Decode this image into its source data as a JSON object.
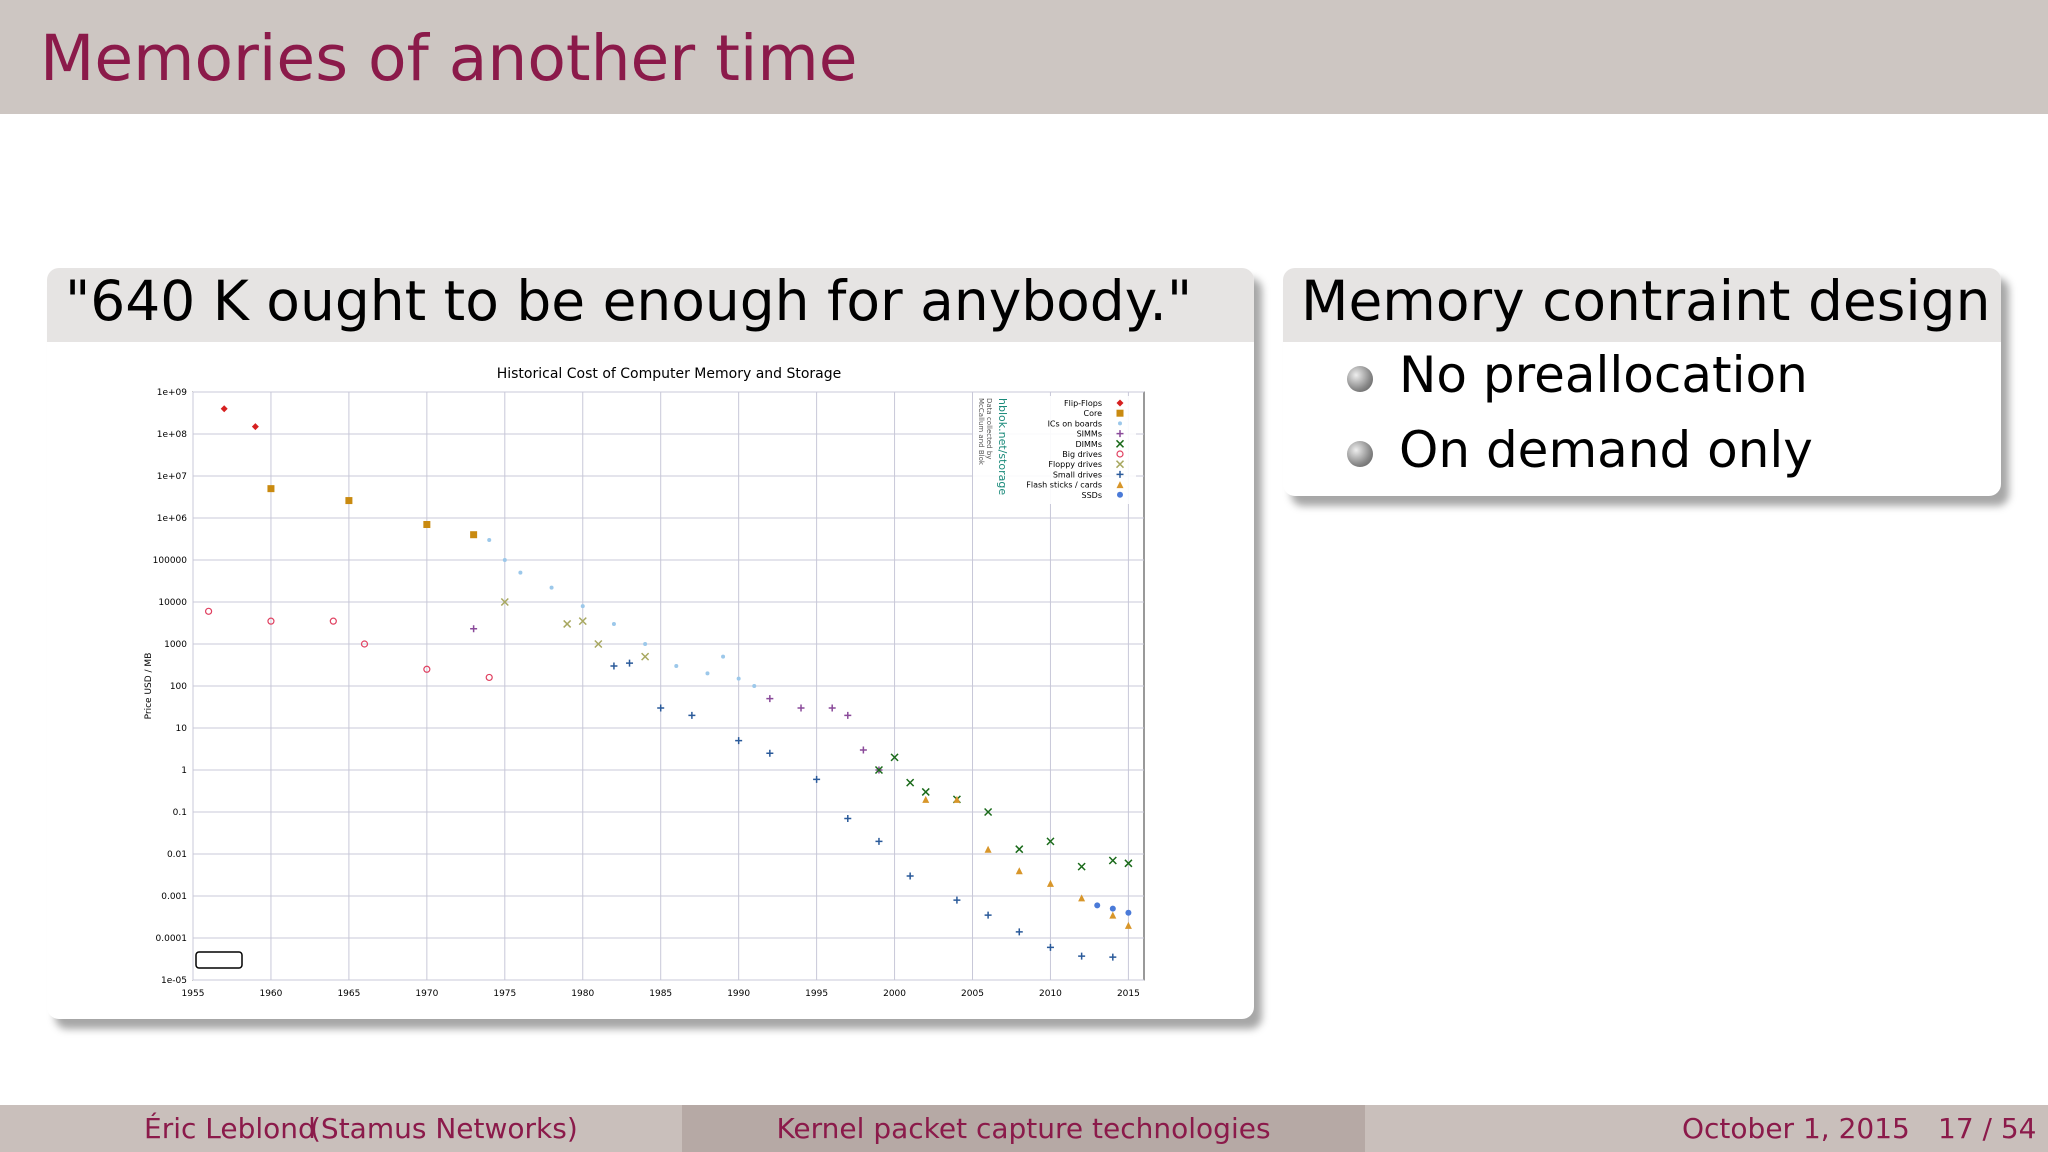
{
  "header": {
    "title": "Memories of another time"
  },
  "block_left": {
    "title": "\"640 K ought to be enough for anybody.\""
  },
  "block_right": {
    "title": "Memory contraint design",
    "items": [
      "No preallocation",
      "On demand only"
    ]
  },
  "footer": {
    "author": "Éric Leblond",
    "institute": "(Stamus Networks)",
    "talk": "Kernel packet capture technologies",
    "date": "October 1, 2015",
    "page": "17 / 54"
  },
  "chart_data": {
    "type": "scatter",
    "title": "Historical Cost of Computer Memory and Storage",
    "y_label": "Price USD / MB",
    "attribution": "hblok.net/storage",
    "credit": [
      "Data collected by",
      "McCallum and Blok"
    ],
    "log_y": true,
    "grid": true,
    "legend": "upper right",
    "xlim": [
      1955,
      2016
    ],
    "xticks": [
      1955,
      1960,
      1965,
      1970,
      1975,
      1980,
      1985,
      1990,
      1995,
      2000,
      2005,
      2010,
      2015
    ],
    "ylim": [
      1e-05,
      1000000000
    ],
    "yticks": [
      {
        "value": 1000000000,
        "label": "1e+09"
      },
      {
        "value": 100000000,
        "label": "1e+08"
      },
      {
        "value": 10000000,
        "label": "1e+07"
      },
      {
        "value": 1000000,
        "label": "1e+06"
      },
      100000,
      10000,
      1000,
      100,
      10,
      1,
      0.1,
      0.01,
      0.001,
      0.0001,
      {
        "value": 1e-05,
        "label": "1e-05"
      }
    ],
    "series": [
      {
        "name": "Flip-Flops",
        "color": "#d62020",
        "marker": "diamond",
        "x": [
          1957,
          1959
        ],
        "values": [
          400000000,
          150000000
        ]
      },
      {
        "name": "Core",
        "color": "#c98a10",
        "marker": "square",
        "x": [
          1960,
          1965,
          1970,
          1973
        ],
        "values": [
          5000000,
          2600000,
          700000,
          400000
        ]
      },
      {
        "name": "ICs on boards",
        "color": "#9cc8ea",
        "marker": "dot",
        "x": [
          1974,
          1975,
          1976,
          1978,
          1980,
          1982,
          1984,
          1986,
          1988,
          1989,
          1990,
          1991
        ],
        "values": [
          300000,
          100000,
          50000,
          22000,
          8000,
          3000,
          1000,
          300,
          200,
          500,
          150,
          100
        ]
      },
      {
        "name": "SIMMs",
        "color": "#8a4a9a",
        "marker": "plus",
        "x": [
          1973,
          1992,
          1994,
          1996,
          1997,
          1998,
          1999
        ],
        "values": [
          2300,
          50,
          30,
          30,
          20,
          3,
          1
        ]
      },
      {
        "name": "DIMMs",
        "color": "#1a6a1a",
        "marker": "x",
        "x": [
          1999,
          2000,
          2001,
          2002,
          2004,
          2006,
          2008,
          2010,
          2012,
          2014,
          2015
        ],
        "values": [
          1,
          2,
          0.5,
          0.3,
          0.2,
          0.1,
          0.013,
          0.02,
          0.005,
          0.007,
          0.006
        ]
      },
      {
        "name": "Big drives",
        "color": "#e04060",
        "marker": "circle-open",
        "x": [
          1956,
          1960,
          1964,
          1966,
          1970,
          1974
        ],
        "values": [
          6000,
          3500,
          3500,
          1000,
          250,
          160
        ]
      },
      {
        "name": "Floppy drives",
        "color": "#a8a860",
        "marker": "x",
        "x": [
          1975,
          1979,
          1980,
          1981,
          1984
        ],
        "values": [
          10000,
          3000,
          3500,
          1000,
          500
        ]
      },
      {
        "name": "Small drives",
        "color": "#2a5a9a",
        "marker": "plus",
        "x": [
          1982,
          1983,
          1985,
          1987,
          1990,
          1992,
          1995,
          1997,
          1999,
          2001,
          2004,
          2006,
          2008,
          2010,
          2012,
          2014
        ],
        "values": [
          300,
          350,
          30,
          20,
          5,
          2.5,
          0.6,
          0.07,
          0.02,
          0.003,
          0.0008,
          0.00035,
          0.00014,
          6e-05,
          3.7e-05,
          3.5e-05
        ]
      },
      {
        "name": "Flash sticks / cards",
        "color": "#d8962a",
        "marker": "triangle",
        "x": [
          2002,
          2004,
          2006,
          2008,
          2010,
          2012,
          2014,
          2015
        ],
        "values": [
          0.2,
          0.2,
          0.013,
          0.004,
          0.002,
          0.0009,
          0.00035,
          0.0002
        ]
      },
      {
        "name": "SSDs",
        "color": "#4a7ad8",
        "marker": "circle",
        "x": [
          2013,
          2014,
          2015
        ],
        "values": [
          0.0006,
          0.0005,
          0.0004
        ]
      }
    ]
  }
}
